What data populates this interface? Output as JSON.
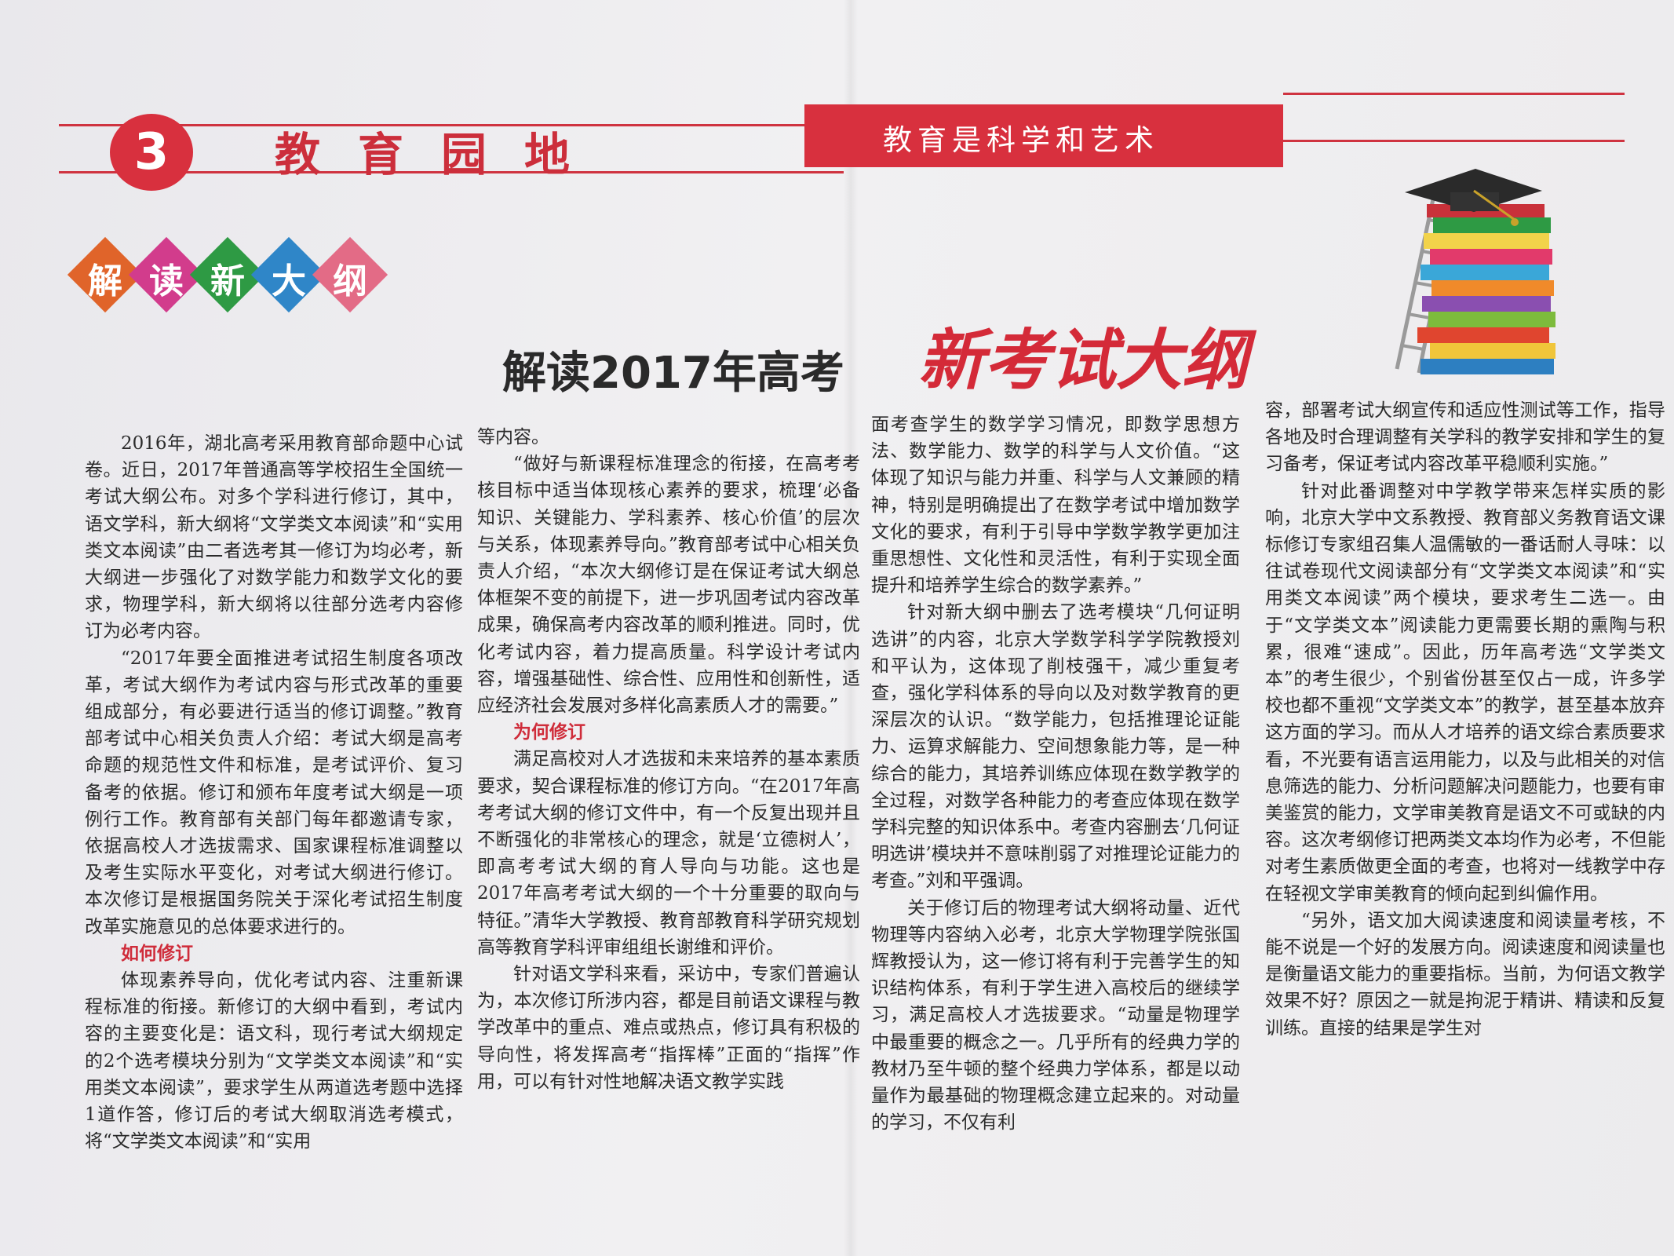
{
  "header": {
    "page_number": "3",
    "section_title": "教育园地",
    "slogan": "教育是科学和艺术"
  },
  "tag_chars": [
    {
      "char": "解",
      "color": "#e0642a"
    },
    {
      "char": "读",
      "color": "#d23c8c"
    },
    {
      "char": "新",
      "color": "#2e9a44"
    },
    {
      "char": "大",
      "color": "#2f86c8"
    },
    {
      "char": "纲",
      "color": "#e36b86"
    }
  ],
  "headline": {
    "main": "解读2017年高考",
    "highlight": "新考试大纲"
  },
  "icons": [
    "graduation-cap-icon",
    "book-stack-icon",
    "ladder-icon"
  ],
  "article": {
    "col1": [
      "2016年，湖北高考采用教育部命题中心试卷。近日，2017年普通高等学校招生全国统一考试大纲公布。对多个学科进行修订，其中，语文学科，新大纲将“文学类文本阅读”和“实用类文本阅读”由二者选考其一修订为均必考，新大纲进一步强化了对数学能力和数学文化的要求，物理学科，新大纲将以往部分选考内容修订为必考内容。",
      "“2017年要全面推进考试招生制度各项改革，考试大纲作为考试内容与形式改革的重要组成部分，有必要进行适当的修订调整。”教育部考试中心相关负责人介绍：考试大纲是高考命题的规范性文件和标准，是考试评价、复习备考的依据。修订和颁布年度考试大纲是一项例行工作。教育部有关部门每年都邀请专家，依据高校人才选拔需求、国家课程标准调整以及考生实际水平变化，对考试大纲进行修订。本次修订是根据国务院关于深化考试招生制度改革实施意见的总体要求进行的。"
    ],
    "subhead1": "如何修订",
    "col1_after": "体现素养导向，优化考试内容、注重新课程标准的衔接。新修订的大纲中看到，考试内容的主要变化是：语文科，现行考试大纲规定的2个选考模块分别为“文学类文本阅读”和“实用类文本阅读”，要求学生从两道选考题中选择1道作答，修订后的考试大纲取消选考模式，将“文学类文本阅读”和“实用",
    "col2": [
      "等内容。",
      "“做好与新课程标准理念的衔接，在高考考核目标中适当体现核心素养的要求，梳理‘必备知识、关键能力、学科素养、核心价值’的层次与关系，体现素养导向。”教育部考试中心相关负责人介绍，“本次大纲修订是在保证考试大纲总体框架不变的前提下，进一步巩固考试内容改革成果，确保高考内容改革的顺利推进。同时，优化考试内容，着力提高质量。科学设计考试内容，增强基础性、综合性、应用性和创新性，适应经济社会发展对多样化高素质人才的需要。”"
    ],
    "subhead2": "为何修订",
    "col2_after": [
      "满足高校对人才选拔和未来培养的基本素质要求，契合课程标准的修订方向。“在2017年高考考试大纲的修订文件中，有一个反复出现并且不断强化的非常核心的理念，就是‘立德树人’，即高考考试大纲的育人导向与功能。这也是2017年高考考试大纲的一个十分重要的取向与特征。”清华大学教授、教育部教育科学研究规划高等教育学科评审组组长谢维和评价。",
      "针对语文学科来看，采访中，专家们普遍认为，本次修订所涉内容，都是目前语文课程与教学改革中的重点、难点或热点，修订具有积极的导向性，将发挥高考“指挥棒”正面的“指挥”作用，可以有针对性地解决语文教学实践"
    ],
    "col3": [
      "面考查学生的数学学习情况，即数学思想方法、数学能力、数学的科学与人文价值。“这体现了知识与能力并重、科学与人文兼顾的精神，特别是明确提出了在数学考试中增加数学文化的要求，有利于引导中学数学教学更加注重思想性、文化性和灵活性，有利于实现全面提升和培养学生综合的数学素养。”",
      "针对新大纲中删去了选考模块“几何证明选讲”的内容，北京大学数学科学学院教授刘和平认为，这体现了削枝强干，减少重复考查，强化学科体系的导向以及对数学教育的更深层次的认识。“数学能力，包括推理论证能力、运算求解能力、空间想象能力等，是一种综合的能力，其培养训练应体现在数学教学的全过程，对数学各种能力的考查应体现在数学学科完整的知识体系中。考查内容删去‘几何证明选讲’模块并不意味削弱了对推理论证能力的考查。”刘和平强调。",
      "关于修订后的物理考试大纲将动量、近代物理等内容纳入必考，北京大学物理学院张国辉教授认为，这一修订将有利于完善学生的知识结构体系，有利于学生进入高校后的继续学习，满足高校人才选拔要求。“动量是物理学中最重要的概念之一。几乎所有的经典力学的教材乃至牛顿的整个经典力学体系，都是以动量作为最基础的物理概念建立起来的。对动量的学习，不仅有利"
    ],
    "col4": [
      "容，部署考试大纲宣传和适应性测试等工作，指导各地及时合理调整有关学科的教学安排和学生的复习备考，保证考试内容改革平稳顺利实施。”",
      "针对此番调整对中学教学带来怎样实质的影响，北京大学中文系教授、教育部义务教育语文课标修订专家组召集人温儒敏的一番话耐人寻味：以往试卷现代文阅读部分有“文学类文本阅读”和“实用类文本阅读”两个模块，要求考生二选一。由于“文学类文本”阅读能力更需要长期的熏陶与积累，很难“速成”。因此，历年高考选“文学类文本”的考生很少，个别省份甚至仅占一成，许多学校也都不重视“文学类文本”的教学，甚至基本放弃这方面的学习。而从人才培养的语文综合素质要求看，不光要有语言运用能力，以及与此相关的对信息筛选的能力、分析问题解决问题能力，也要有审美鉴赏的能力，文学审美教育是语文不可或缺的内容。这次考纲修订把两类文本均作为必考，不但能对考生素质做更全面的考查，也将对一线教学中存在轻视文学审美教育的倾向起到纠偏作用。",
      "“另外，语文加大阅读速度和阅读量考核，不能不说是一个好的发展方向。阅读速度和阅读量也是衡量语文能力的重要指标。当前，为何语文教学效果不好？原因之一就是拘泥于精讲、精读和反复训练。直接的结果是学生对"
    ]
  }
}
